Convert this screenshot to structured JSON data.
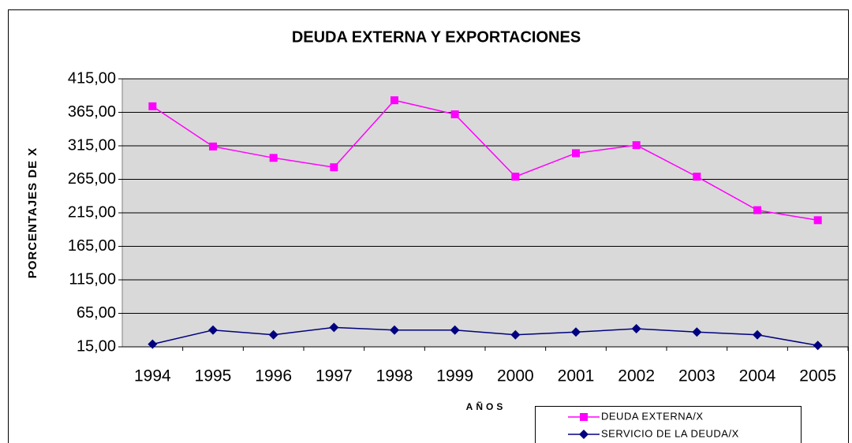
{
  "chart_data": {
    "type": "line",
    "title": "DEUDA EXTERNA Y EXPORTACIONES",
    "x_label": "AÑOS",
    "y_label": "PORCENTAJES DE X",
    "categories": [
      "1994",
      "1995",
      "1996",
      "1997",
      "1998",
      "1999",
      "2000",
      "2001",
      "2002",
      "2003",
      "2004",
      "2005"
    ],
    "series": [
      {
        "name": "DEUDA EXTERNA/X",
        "color": "#ff00ff",
        "marker": "square",
        "values": [
          374,
          314,
          297,
          283,
          383,
          362,
          269,
          304,
          316,
          269,
          219,
          204
        ]
      },
      {
        "name": "SERVICIO DE LA DEUDA/X",
        "color": "#000080",
        "marker": "diamond",
        "values": [
          19,
          40,
          33,
          44,
          40,
          40,
          33,
          37,
          42,
          37,
          33,
          17
        ]
      }
    ],
    "ylim": [
      15,
      415
    ],
    "yticks": [
      {
        "value": 15,
        "label": "15,00"
      },
      {
        "value": 65,
        "label": "65,00"
      },
      {
        "value": 115,
        "label": "115,00"
      },
      {
        "value": 165,
        "label": "165,00"
      },
      {
        "value": 215,
        "label": "215,00"
      },
      {
        "value": 265,
        "label": "265,00"
      },
      {
        "value": 315,
        "label": "315,00"
      },
      {
        "value": 365,
        "label": "365,00"
      },
      {
        "value": 415,
        "label": "415,00"
      }
    ],
    "grid": true,
    "plot_background": "#d9d9d9",
    "legend": "bottom-right"
  }
}
